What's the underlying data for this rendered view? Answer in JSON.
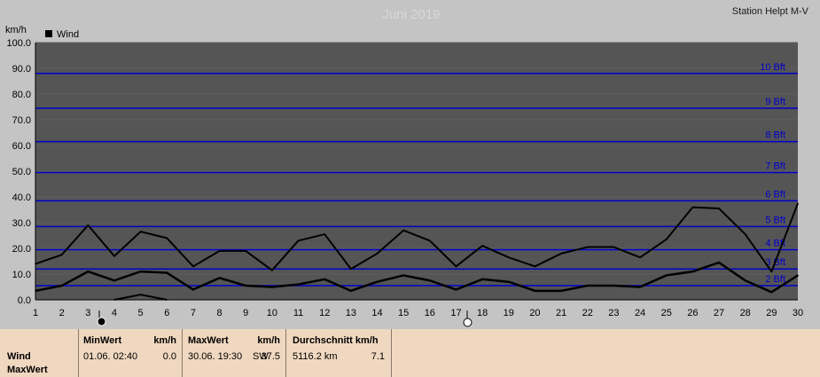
{
  "chart_data": {
    "type": "line",
    "title": "Juni 2019",
    "station": "Station Helpt M-V",
    "ylabel": "km/h",
    "ylim": [
      0,
      100
    ],
    "y_ticks": [
      "0.0",
      "10.0",
      "20.0",
      "30.0",
      "40.0",
      "50.0",
      "60.0",
      "70.0",
      "80.0",
      "90.0",
      "100.0"
    ],
    "x": [
      1,
      2,
      3,
      4,
      5,
      6,
      7,
      8,
      9,
      10,
      11,
      12,
      13,
      14,
      15,
      16,
      17,
      18,
      19,
      20,
      21,
      22,
      23,
      24,
      25,
      26,
      27,
      28,
      29,
      30
    ],
    "legend": {
      "label": "Wind",
      "placement": "top-left"
    },
    "series": [
      {
        "name": "Wind",
        "values": [
          3.5,
          5.5,
          11,
          7.5,
          11,
          10.5,
          4,
          8.5,
          5.5,
          5,
          6,
          8,
          3.5,
          7,
          9.5,
          7.5,
          4,
          8,
          7,
          3.5,
          3.5,
          5.5,
          5.5,
          5,
          9.5,
          11,
          14.5,
          7.5,
          3,
          9.5
        ]
      },
      {
        "name": "MaxWert",
        "values": [
          14,
          17.5,
          29,
          17,
          26.5,
          24,
          13,
          19,
          19,
          11.5,
          23,
          25.5,
          12,
          18,
          27,
          23,
          13,
          21,
          16.5,
          13,
          18,
          20.5,
          20.5,
          16.5,
          23.5,
          36,
          35.5,
          25.5,
          11,
          37.5
        ]
      }
    ],
    "partial_series": {
      "x": [
        4,
        5,
        6
      ],
      "values": [
        0,
        2,
        0
      ]
    },
    "beaufort_lines": [
      {
        "value": 5.5,
        "label": "2 Bft"
      },
      {
        "value": 12,
        "label": "3 Bft"
      },
      {
        "value": 19.5,
        "label": "4 Bft"
      },
      {
        "value": 28.5,
        "label": "5 Bft"
      },
      {
        "value": 38.5,
        "label": "6 Bft"
      },
      {
        "value": 49.5,
        "label": "7 Bft"
      },
      {
        "value": 61.5,
        "label": "8 Bft"
      },
      {
        "value": 74.5,
        "label": "9 Bft"
      },
      {
        "value": 88,
        "label": "10 Bft"
      }
    ],
    "colors": {
      "plot_bg": "#555555",
      "frame_bg": "#c4c4c4",
      "beaufort": "#0000cc",
      "line": "#000000"
    }
  },
  "stats": {
    "row_labels": [
      "Wind",
      "MaxWert"
    ],
    "min": {
      "header": "MinWert",
      "unit": "km/h",
      "date": "01.06.  02:40",
      "value": "0.0"
    },
    "max": {
      "header": "MaxWert",
      "unit": "km/h",
      "date": "30.06.  19:30",
      "dir": "SW",
      "value": "37.5"
    },
    "avg": {
      "header": "Durchschnitt km/h",
      "distance": "5116.2 km",
      "value": "7.1"
    }
  }
}
